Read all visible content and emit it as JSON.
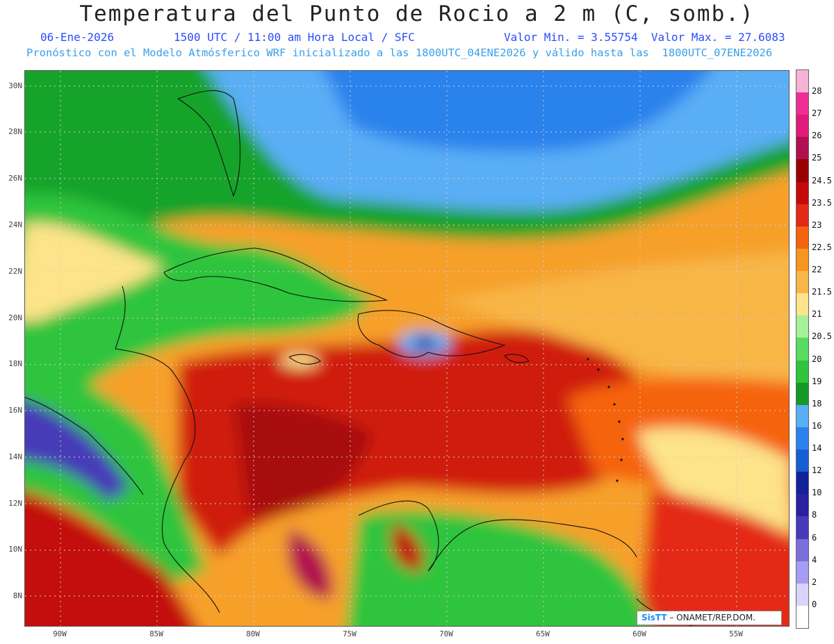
{
  "title": "Temperatura del Punto de Rocio a 2 m (C, somb.)",
  "subtitle": {
    "date": "06-Ene-2026",
    "time": "1500 UTC / 11:00 am Hora Local / SFC",
    "range": "Valor Min. = 3.55754  Valor Max. = 27.6083"
  },
  "model_line": "Pronóstico con el Modelo Atmósferico WRF inicializado a las 1800UTC_04ENE2026 y válido hasta las  1800UTC_07ENE2026",
  "lat_labels": [
    "30N",
    "28N",
    "26N",
    "24N",
    "22N",
    "20N",
    "18N",
    "16N",
    "14N",
    "12N",
    "10N",
    "8N"
  ],
  "lon_labels": [
    "90W",
    "85W",
    "80W",
    "75W",
    "70W",
    "65W",
    "60W",
    "55W"
  ],
  "colorbar": {
    "labels": [
      "28",
      "27",
      "26",
      "25",
      "24.5",
      "23.5",
      "23",
      "22.5",
      "22",
      "21.5",
      "21",
      "20.5",
      "20",
      "19",
      "18",
      "16",
      "14",
      "12",
      "10",
      "8",
      "6",
      "4",
      "2",
      "0"
    ],
    "colors": [
      "#f7b3d6",
      "#ef2d96",
      "#e01a7a",
      "#b0104e",
      "#9a0000",
      "#c40a0a",
      "#e42a14",
      "#f5640c",
      "#f7961e",
      "#f8b646",
      "#fde38a",
      "#a6f09a",
      "#58dc60",
      "#2ec43c",
      "#129a24",
      "#5aaef6",
      "#2c82ec",
      "#165ed4",
      "#11229a",
      "#2b1fa4",
      "#463ab8",
      "#7b6fdc",
      "#a79cf4",
      "#d9d4fa",
      "#ffffff"
    ]
  },
  "credit": {
    "brand": "SisTT",
    "text": " – ONAMET/REP.DOM."
  }
}
